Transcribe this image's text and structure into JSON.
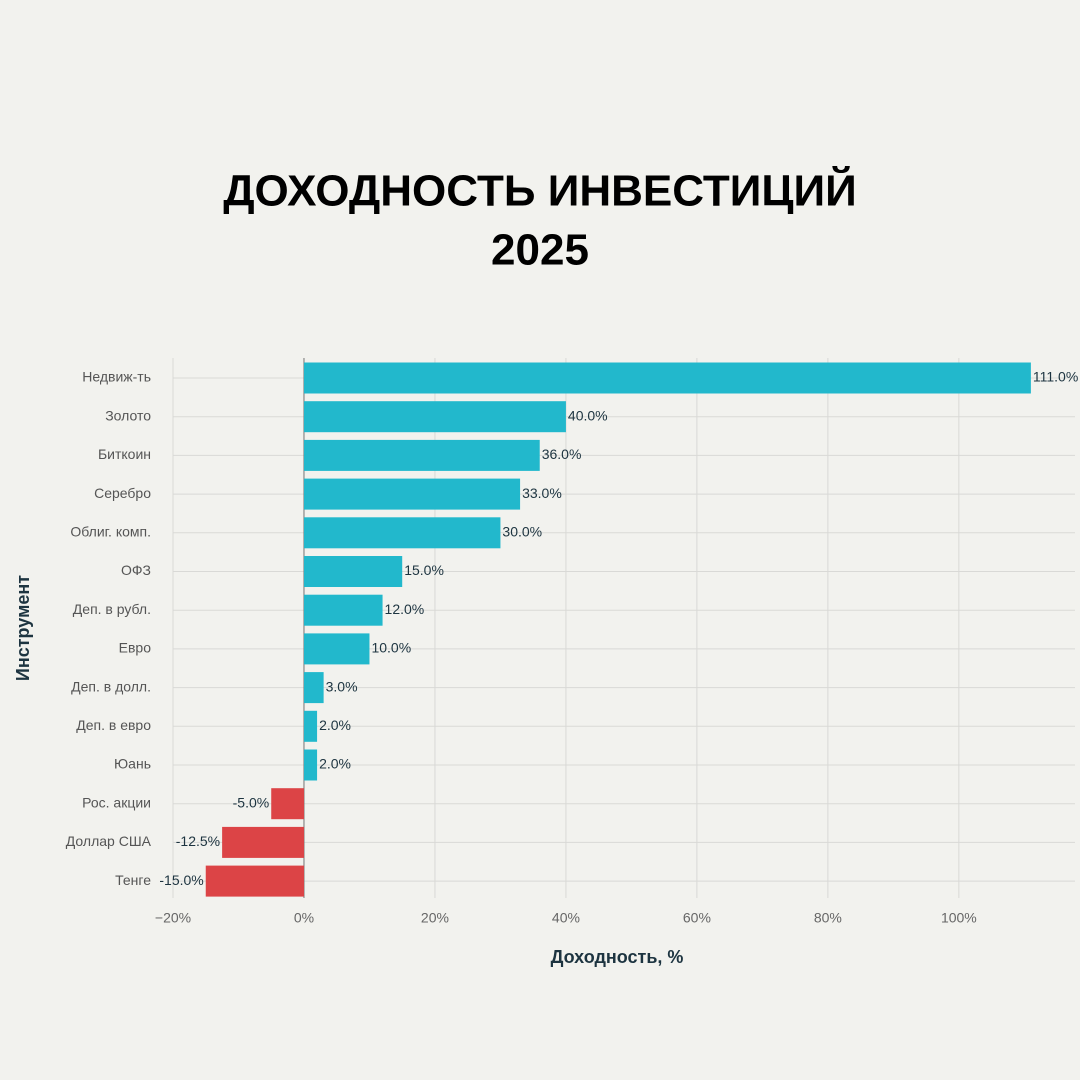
{
  "chart_data": {
    "type": "barh",
    "title": [
      "ДОХОДНОСТЬ ИНВЕСТИЦИЙ",
      "2025"
    ],
    "xlabel": "Доходность, %",
    "ylabel": "Инструмент",
    "categories": [
      "Недвиж-ть",
      "Золото",
      "Биткоин",
      "Серебро",
      "Облиг. комп.",
      "ОФЗ",
      "Деп. в рубл.",
      "Евро",
      "Деп. в долл.",
      "Деп. в евро",
      "Юань",
      "Рос. акции",
      "Доллар США",
      "Тенге"
    ],
    "values": [
      111.0,
      40.0,
      36.0,
      33.0,
      30.0,
      15.0,
      12.0,
      10.0,
      3.0,
      2.0,
      2.0,
      -5.0,
      -12.5,
      -15.0
    ],
    "value_labels": [
      "111.0%",
      "40.0%",
      "36.0%",
      "33.0%",
      "30.0%",
      "15.0%",
      "12.0%",
      "10.0%",
      "3.0%",
      "2.0%",
      "2.0%",
      "-5.0%",
      "-12.5%",
      "-15.0%"
    ],
    "colors": [
      "#22b8cc",
      "#22b8cc",
      "#22b8cc",
      "#22b8cc",
      "#22b8cc",
      "#22b8cc",
      "#22b8cc",
      "#22b8cc",
      "#22b8cc",
      "#22b8cc",
      "#22b8cc",
      "#dc4446",
      "#dc4446",
      "#dc4446"
    ],
    "xlim": [
      -20,
      118.5
    ],
    "xticks": [
      {
        "value": -20,
        "label": "−20%"
      },
      {
        "value": 0,
        "label": "0%"
      },
      {
        "value": 20,
        "label": "20%"
      },
      {
        "value": 40,
        "label": "40%"
      },
      {
        "value": 60,
        "label": "60%"
      },
      {
        "value": 80,
        "label": "80%"
      },
      {
        "value": 100,
        "label": "100%"
      }
    ],
    "grid": true
  }
}
